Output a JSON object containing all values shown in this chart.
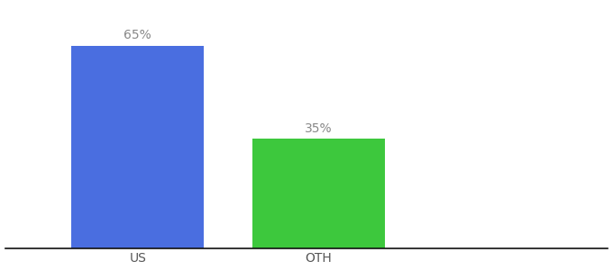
{
  "categories": [
    "US",
    "OTH"
  ],
  "values": [
    65,
    35
  ],
  "bar_colors": [
    "#4a6ee0",
    "#3dc83d"
  ],
  "label_texts": [
    "65%",
    "35%"
  ],
  "label_color": "#888888",
  "label_fontsize": 10,
  "tick_fontsize": 10,
  "tick_color": "#555555",
  "background_color": "#ffffff",
  "ylim": [
    0,
    78
  ],
  "bar_width": 0.22,
  "x_positions": [
    0.22,
    0.52
  ],
  "xlim": [
    0.0,
    1.0
  ],
  "figsize": [
    6.8,
    3.0
  ],
  "dpi": 100,
  "spine_color": "#111111",
  "spine_linewidth": 1.2
}
